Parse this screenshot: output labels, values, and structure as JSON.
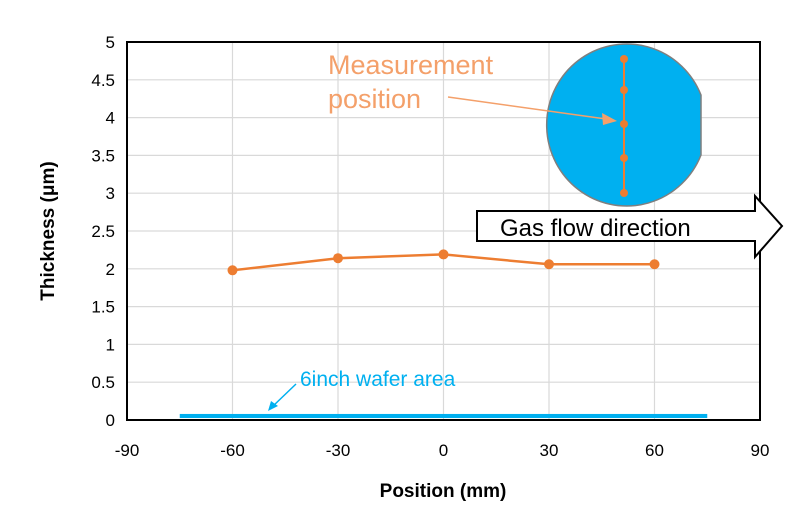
{
  "chart_data": {
    "type": "line",
    "title": "",
    "xlabel": "Position (mm)",
    "ylabel": "Thickness (μm)",
    "xlim": [
      -90,
      90
    ],
    "ylim": [
      0,
      5
    ],
    "xticks": [
      "-90",
      "-60",
      "-30",
      "0",
      "30",
      "60",
      "90"
    ],
    "xtick_values": [
      -90,
      -60,
      -30,
      0,
      30,
      60,
      90
    ],
    "yticks": [
      "0",
      "0.5",
      "1",
      "1.5",
      "2",
      "2.5",
      "3",
      "3.5",
      "4",
      "4.5",
      "5"
    ],
    "ytick_values": [
      0,
      0.5,
      1,
      1.5,
      2,
      2.5,
      3,
      3.5,
      4,
      4.5,
      5
    ],
    "grid": true,
    "series": [
      {
        "name": "Thickness",
        "color": "#ED7D31",
        "x": [
          -60,
          -30,
          0,
          30,
          60
        ],
        "y": [
          1.98,
          2.14,
          2.19,
          2.06,
          2.06
        ]
      }
    ],
    "wafer_area": {
      "x": [
        -75,
        75
      ],
      "y": 0.08,
      "color": "#00B0F0"
    },
    "annotations": {
      "measurement": "Measurement position",
      "measurement_line1": "Measurement",
      "measurement_line2": "position",
      "gas_flow": "Gas flow direction",
      "wafer_area": "6inch wafer area"
    },
    "colors": {
      "orange": "#ED7D31",
      "blue": "#00B0F0",
      "grid": "#D9D9D9"
    }
  }
}
